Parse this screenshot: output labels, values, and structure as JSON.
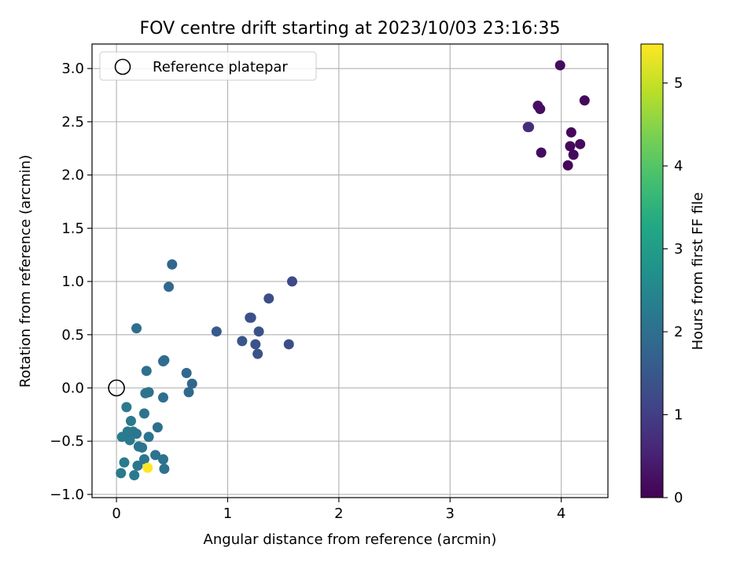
{
  "chart_data": {
    "type": "scatter",
    "title": "FOV centre drift starting at 2023/10/03 23:16:35",
    "xlabel": "Angular distance from reference (arcmin)",
    "ylabel": "Rotation from reference (arcmin)",
    "xlim": [
      -0.22,
      4.42
    ],
    "ylim": [
      -1.03,
      3.23
    ],
    "x_ticks": [
      0,
      1,
      2,
      3,
      4
    ],
    "y_ticks": [
      -1.0,
      -0.5,
      0.0,
      0.5,
      1.0,
      1.5,
      2.0,
      2.5,
      3.0
    ],
    "grid": true,
    "legend": {
      "placement": "top-left",
      "label": "Reference platepar"
    },
    "reference_point": {
      "x": 0.0,
      "y": 0.0
    },
    "colorbar": {
      "label": "Hours from first FF file",
      "range": [
        0,
        5.47
      ],
      "ticks": [
        0,
        1,
        2,
        3,
        4,
        5
      ],
      "colormap": "viridis"
    },
    "points": [
      {
        "x": 3.99,
        "y": 3.03,
        "c": 0.15
      },
      {
        "x": 4.21,
        "y": 2.7,
        "c": 0.12
      },
      {
        "x": 3.79,
        "y": 2.65,
        "c": 0.25
      },
      {
        "x": 3.81,
        "y": 2.62,
        "c": 0.2
      },
      {
        "x": 3.71,
        "y": 2.45,
        "c": 0.85
      },
      {
        "x": 3.7,
        "y": 2.45,
        "c": 0.7
      },
      {
        "x": 4.09,
        "y": 2.4,
        "c": 0.1
      },
      {
        "x": 4.17,
        "y": 2.29,
        "c": 0.15
      },
      {
        "x": 4.08,
        "y": 2.27,
        "c": 0.1
      },
      {
        "x": 3.82,
        "y": 2.21,
        "c": 0.18
      },
      {
        "x": 4.11,
        "y": 2.19,
        "c": 0.12
      },
      {
        "x": 4.06,
        "y": 2.09,
        "c": 0.1
      },
      {
        "x": 1.58,
        "y": 1.0,
        "c": 1.2
      },
      {
        "x": 1.37,
        "y": 0.84,
        "c": 1.3
      },
      {
        "x": 1.21,
        "y": 0.66,
        "c": 1.4
      },
      {
        "x": 1.2,
        "y": 0.66,
        "c": 1.35
      },
      {
        "x": 0.9,
        "y": 0.53,
        "c": 1.55
      },
      {
        "x": 1.28,
        "y": 0.53,
        "c": 1.35
      },
      {
        "x": 1.13,
        "y": 0.44,
        "c": 1.45
      },
      {
        "x": 1.25,
        "y": 0.41,
        "c": 1.4
      },
      {
        "x": 1.55,
        "y": 0.41,
        "c": 1.3
      },
      {
        "x": 1.27,
        "y": 0.32,
        "c": 1.4
      },
      {
        "x": 0.5,
        "y": 1.16,
        "c": 1.8
      },
      {
        "x": 0.47,
        "y": 0.95,
        "c": 1.85
      },
      {
        "x": 0.18,
        "y": 0.56,
        "c": 2.0
      },
      {
        "x": 0.43,
        "y": 0.26,
        "c": 1.9
      },
      {
        "x": 0.42,
        "y": 0.25,
        "c": 1.95
      },
      {
        "x": 0.27,
        "y": 0.16,
        "c": 2.0
      },
      {
        "x": 0.63,
        "y": 0.14,
        "c": 1.85
      },
      {
        "x": 0.68,
        "y": 0.04,
        "c": 1.8
      },
      {
        "x": 0.29,
        "y": -0.04,
        "c": 2.05
      },
      {
        "x": 0.26,
        "y": -0.05,
        "c": 2.1
      },
      {
        "x": 0.65,
        "y": -0.04,
        "c": 1.85
      },
      {
        "x": 0.42,
        "y": -0.09,
        "c": 2.0
      },
      {
        "x": 0.09,
        "y": -0.18,
        "c": 2.2
      },
      {
        "x": 0.25,
        "y": -0.24,
        "c": 2.1
      },
      {
        "x": 0.13,
        "y": -0.31,
        "c": 2.2
      },
      {
        "x": 0.37,
        "y": -0.37,
        "c": 2.0
      },
      {
        "x": 0.1,
        "y": -0.41,
        "c": 2.2
      },
      {
        "x": 0.15,
        "y": -0.41,
        "c": 2.2
      },
      {
        "x": 0.18,
        "y": -0.43,
        "c": 2.15
      },
      {
        "x": 0.05,
        "y": -0.46,
        "c": 2.25
      },
      {
        "x": 0.29,
        "y": -0.46,
        "c": 2.1
      },
      {
        "x": 0.12,
        "y": -0.49,
        "c": 2.2
      },
      {
        "x": 0.2,
        "y": -0.55,
        "c": 2.15
      },
      {
        "x": 0.23,
        "y": -0.56,
        "c": 2.15
      },
      {
        "x": 0.35,
        "y": -0.63,
        "c": 2.05
      },
      {
        "x": 0.25,
        "y": -0.67,
        "c": 2.15
      },
      {
        "x": 0.42,
        "y": -0.67,
        "c": 2.05
      },
      {
        "x": 0.07,
        "y": -0.7,
        "c": 2.25
      },
      {
        "x": 0.19,
        "y": -0.73,
        "c": 2.15
      },
      {
        "x": 0.28,
        "y": -0.75,
        "c": 5.47
      },
      {
        "x": 0.43,
        "y": -0.76,
        "c": 2.05
      },
      {
        "x": 0.04,
        "y": -0.8,
        "c": 2.25
      },
      {
        "x": 0.16,
        "y": -0.82,
        "c": 2.2
      }
    ]
  }
}
